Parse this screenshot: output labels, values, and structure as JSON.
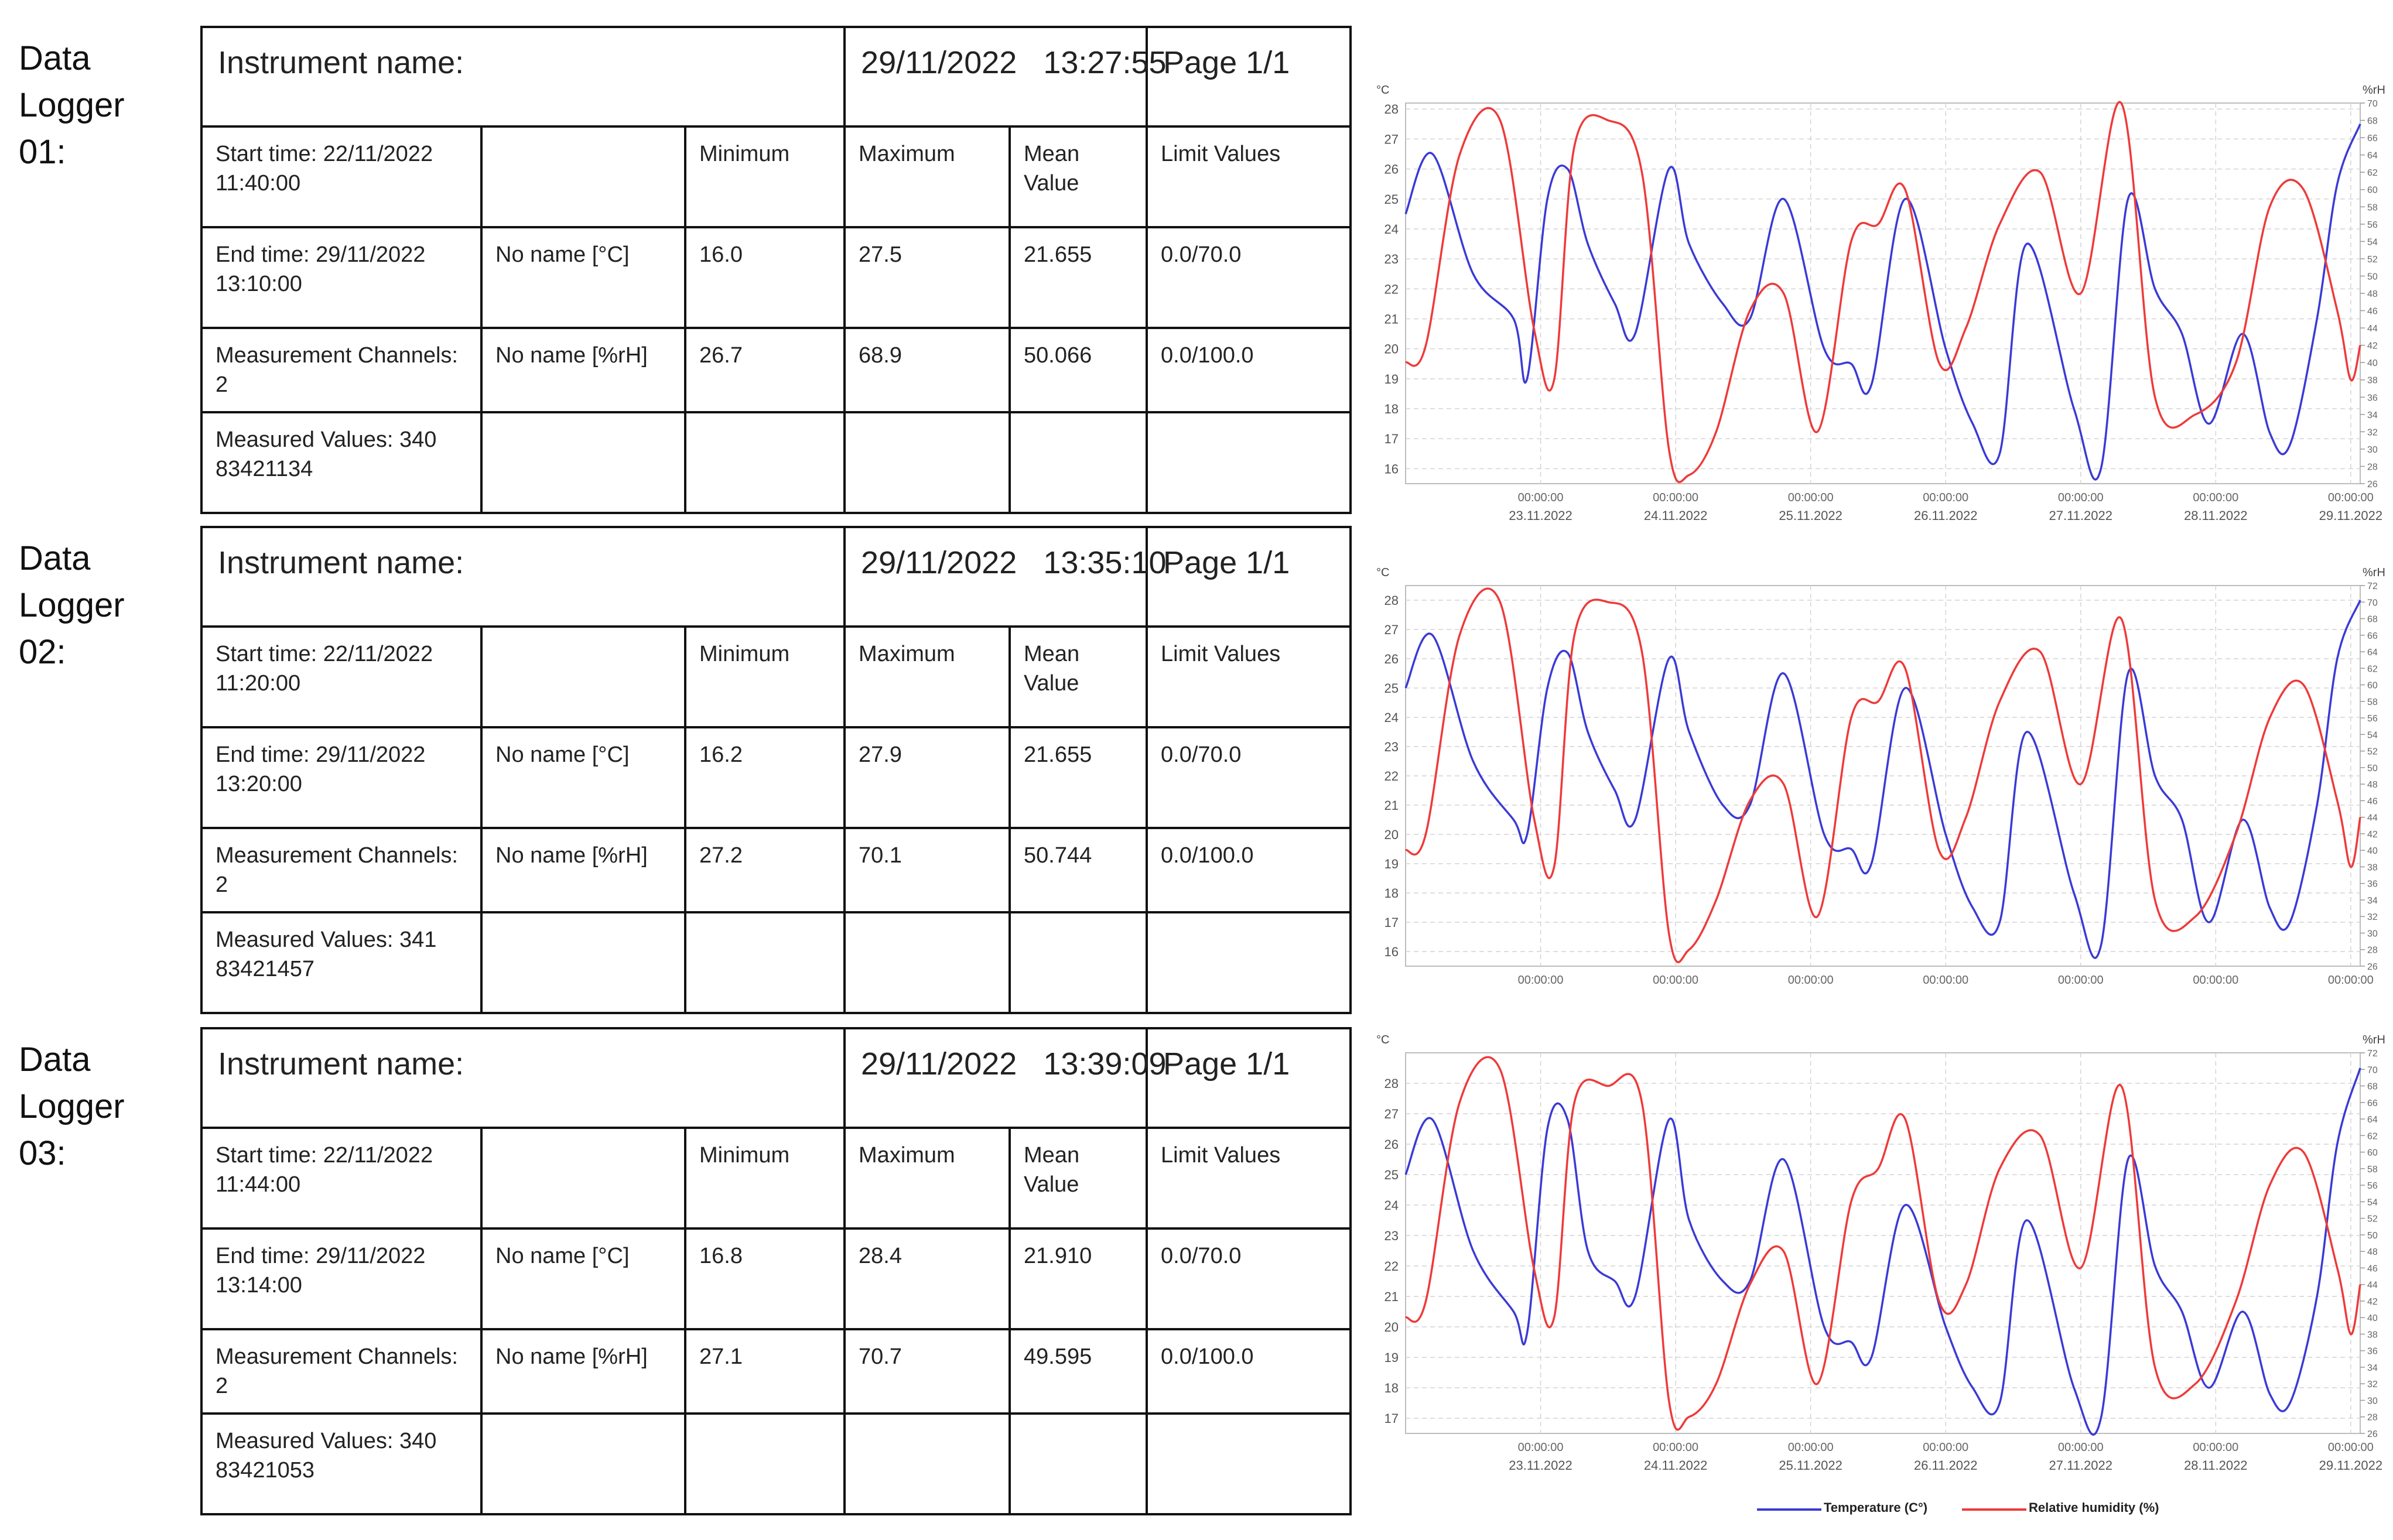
{
  "loggers": [
    {
      "label_line1": "Data",
      "label_line2": "Logger",
      "label_line3": "01:",
      "instrument_label": "Instrument name:",
      "date": "29/11/2022",
      "time": "13:27:55",
      "page": "Page 1/1",
      "start_time_label": "Start time: 22/11/2022",
      "start_time_clock": "11:40:00",
      "end_time_label": "End time: 29/11/2022",
      "end_time_clock": "13:10:00",
      "channels_label": "Measurement Channels:",
      "channels_value": "2",
      "values_label": "Measured Values: 340",
      "serial": "83421134",
      "col_min": "Minimum",
      "col_max": "Maximum",
      "col_mean_1": "Mean",
      "col_mean_2": "Value",
      "col_limit": "Limit Values",
      "ch1_name": "No name [°C]",
      "ch1_min": "16.0",
      "ch1_max": "27.5",
      "ch1_mean": "21.655",
      "ch1_limit": "0.0/70.0",
      "ch2_name": "No name [%rH]",
      "ch2_min": "26.7",
      "ch2_max": "68.9",
      "ch2_mean": "50.066",
      "ch2_limit": "0.0/100.0"
    },
    {
      "label_line1": "Data",
      "label_line2": "Logger",
      "label_line3": "02:",
      "instrument_label": "Instrument name:",
      "date": "29/11/2022",
      "time": "13:35:10",
      "page": "Page 1/1",
      "start_time_label": "Start time: 22/11/2022",
      "start_time_clock": "11:20:00",
      "end_time_label": "End time: 29/11/2022",
      "end_time_clock": "13:20:00",
      "channels_label": "Measurement Channels:",
      "channels_value": "2",
      "values_label": "Measured Values: 341",
      "serial": "83421457",
      "col_min": "Minimum",
      "col_max": "Maximum",
      "col_mean_1": "Mean",
      "col_mean_2": "Value",
      "col_limit": "Limit Values",
      "ch1_name": "No name [°C]",
      "ch1_min": "16.2",
      "ch1_max": "27.9",
      "ch1_mean": "21.655",
      "ch1_limit": "0.0/70.0",
      "ch2_name": "No name [%rH]",
      "ch2_min": "27.2",
      "ch2_max": "70.1",
      "ch2_mean": "50.744",
      "ch2_limit": "0.0/100.0"
    },
    {
      "label_line1": "Data",
      "label_line2": "Logger",
      "label_line3": "03:",
      "instrument_label": "Instrument name:",
      "date": "29/11/2022",
      "time": "13:39:09",
      "page": "Page 1/1",
      "start_time_label": "Start time: 22/11/2022",
      "start_time_clock": "11:44:00",
      "end_time_label": "End time: 29/11/2022",
      "end_time_clock": "13:14:00",
      "channels_label": "Measurement Channels:",
      "channels_value": "2",
      "values_label": "Measured Values: 340",
      "serial": "83421053",
      "col_min": "Minimum",
      "col_max": "Maximum",
      "col_mean_1": "Mean",
      "col_mean_2": "Value",
      "col_limit": "Limit Values",
      "ch1_name": "No name [°C]",
      "ch1_min": "16.8",
      "ch1_max": "28.4",
      "ch1_mean": "21.910",
      "ch1_limit": "0.0/70.0",
      "ch2_name": "No name [%rH]",
      "ch2_min": "27.1",
      "ch2_max": "70.7",
      "ch2_mean": "49.595",
      "ch2_limit": "0.0/100.0"
    }
  ],
  "legend": {
    "temperature": "Temperature (C°)",
    "humidity": "Relative humidity (%)",
    "temperature_color": "#3a3ad6",
    "humidity_color": "#ee3a3a"
  },
  "chart_data": [
    {
      "type": "line",
      "left_unit": "°C",
      "right_unit": "%rH",
      "left_ylim": [
        15.5,
        28.2
      ],
      "left_ticks": [
        16,
        17,
        18,
        19,
        20,
        21,
        22,
        23,
        24,
        25,
        26,
        27,
        28
      ],
      "right_ticks": [
        26,
        28,
        30,
        32,
        34,
        36,
        38,
        40,
        42,
        44,
        46,
        48,
        50,
        52,
        54,
        56,
        58,
        60,
        62,
        64,
        66,
        68,
        70
      ],
      "x_time_label": "00:00:00",
      "x_date_labels": [
        "23.11.2022",
        "24.11.2022",
        "25.11.2022",
        "26.11.2022",
        "27.11.2022",
        "28.11.2022",
        "29.11.2022"
      ],
      "x_range": [
        0,
        7.07
      ],
      "series": [
        {
          "key": "temperature",
          "axis": "left",
          "x": [
            0,
            0.2,
            0.5,
            0.8,
            0.9,
            1.05,
            1.2,
            1.35,
            1.55,
            1.7,
            1.95,
            2.1,
            2.35,
            2.55,
            2.8,
            3.1,
            3.3,
            3.45,
            3.7,
            4.0,
            4.2,
            4.4,
            4.6,
            4.95,
            5.15,
            5.35,
            5.55,
            5.75,
            5.95,
            6.2,
            6.4,
            6.55,
            6.75,
            6.9,
            7.07
          ],
          "y": [
            24.5,
            26.5,
            22.5,
            21.0,
            19.0,
            25.0,
            26.0,
            23.5,
            21.5,
            20.5,
            26.0,
            23.5,
            21.5,
            21.0,
            25.0,
            20.0,
            19.5,
            18.8,
            25.0,
            20.0,
            17.5,
            16.5,
            23.5,
            18.0,
            16.0,
            25.0,
            22.0,
            20.5,
            17.5,
            20.5,
            17.2,
            16.8,
            21.0,
            25.5,
            27.5
          ]
        },
        {
          "key": "humidity",
          "axis": "right",
          "x": [
            0,
            0.15,
            0.4,
            0.7,
            0.95,
            1.1,
            1.25,
            1.5,
            1.75,
            1.95,
            2.1,
            2.3,
            2.55,
            2.8,
            3.05,
            3.3,
            3.5,
            3.7,
            3.95,
            4.15,
            4.4,
            4.7,
            5.0,
            5.3,
            5.55,
            5.85,
            6.15,
            6.4,
            6.65,
            6.9,
            7.0,
            7.07
          ],
          "y": [
            40,
            42,
            64,
            68,
            44,
            38,
            65,
            68,
            62,
            30,
            27,
            32,
            46,
            48,
            32,
            54,
            56,
            60,
            40,
            44,
            56,
            62,
            48,
            70,
            36,
            34,
            40,
            58,
            60,
            46,
            38,
            42
          ]
        }
      ]
    },
    {
      "type": "line",
      "left_unit": "°C",
      "right_unit": "%rH",
      "left_ylim": [
        15.5,
        28.5
      ],
      "left_ticks": [
        16,
        17,
        18,
        19,
        20,
        21,
        22,
        23,
        24,
        25,
        26,
        27,
        28
      ],
      "right_ticks": [
        26,
        28,
        30,
        32,
        34,
        36,
        38,
        40,
        42,
        44,
        46,
        48,
        50,
        52,
        54,
        56,
        58,
        60,
        62,
        64,
        66,
        68,
        70,
        72
      ],
      "x_time_label": "00:00:00",
      "x_date_labels": [],
      "x_range": [
        0,
        7.07
      ],
      "series": [
        {
          "key": "temperature",
          "axis": "left",
          "x": [
            0,
            0.2,
            0.5,
            0.8,
            0.9,
            1.05,
            1.2,
            1.35,
            1.55,
            1.7,
            1.95,
            2.1,
            2.35,
            2.55,
            2.8,
            3.1,
            3.3,
            3.45,
            3.7,
            4.0,
            4.2,
            4.4,
            4.6,
            4.95,
            5.15,
            5.35,
            5.55,
            5.75,
            5.95,
            6.2,
            6.4,
            6.55,
            6.75,
            6.9,
            7.07
          ],
          "y": [
            25.0,
            26.8,
            22.5,
            20.5,
            20.0,
            25.0,
            26.2,
            23.5,
            21.5,
            20.5,
            26.0,
            23.5,
            21.0,
            21.0,
            25.5,
            20.0,
            19.5,
            19.0,
            25.0,
            20.0,
            17.5,
            17.0,
            23.5,
            18.0,
            16.2,
            25.5,
            22.0,
            20.5,
            17.0,
            20.5,
            17.5,
            17.0,
            21.0,
            26.0,
            28.0
          ]
        },
        {
          "key": "humidity",
          "axis": "right",
          "x": [
            0,
            0.15,
            0.4,
            0.7,
            0.95,
            1.1,
            1.25,
            1.5,
            1.75,
            1.95,
            2.1,
            2.3,
            2.55,
            2.8,
            3.05,
            3.3,
            3.5,
            3.7,
            3.95,
            4.15,
            4.4,
            4.7,
            5.0,
            5.3,
            5.55,
            5.85,
            6.15,
            6.4,
            6.65,
            6.9,
            7.0,
            7.07
          ],
          "y": [
            40,
            42,
            66,
            70,
            44,
            38,
            66,
            70,
            64,
            30,
            28,
            34,
            46,
            48,
            32,
            56,
            58,
            62,
            40,
            44,
            58,
            64,
            48,
            68,
            34,
            32,
            42,
            56,
            60,
            46,
            38,
            44
          ]
        }
      ]
    },
    {
      "type": "line",
      "left_unit": "°C",
      "right_unit": "%rH",
      "left_ylim": [
        16.5,
        29.0
      ],
      "left_ticks": [
        17,
        18,
        19,
        20,
        21,
        22,
        23,
        24,
        25,
        26,
        27,
        28
      ],
      "right_ticks": [
        26,
        28,
        30,
        32,
        34,
        36,
        38,
        40,
        42,
        44,
        46,
        48,
        50,
        52,
        54,
        56,
        58,
        60,
        62,
        64,
        66,
        68,
        70,
        72
      ],
      "x_time_label": "00:00:00",
      "x_date_labels": [
        "23.11.2022",
        "24.11.2022",
        "25.11.2022",
        "26.11.2022",
        "27.11.2022",
        "28.11.2022",
        "29.11.2022"
      ],
      "x_range": [
        0,
        7.07
      ],
      "series": [
        {
          "key": "temperature",
          "axis": "left",
          "x": [
            0,
            0.2,
            0.5,
            0.8,
            0.9,
            1.05,
            1.2,
            1.35,
            1.55,
            1.7,
            1.95,
            2.1,
            2.35,
            2.55,
            2.8,
            3.1,
            3.3,
            3.45,
            3.7,
            4.0,
            4.2,
            4.4,
            4.6,
            4.95,
            5.15,
            5.35,
            5.55,
            5.75,
            5.95,
            6.2,
            6.4,
            6.55,
            6.75,
            6.9,
            7.07
          ],
          "y": [
            25.0,
            26.8,
            22.5,
            20.5,
            19.8,
            26.5,
            26.8,
            22.5,
            21.5,
            21.0,
            26.8,
            23.5,
            21.5,
            21.5,
            25.5,
            20.0,
            19.5,
            19.0,
            24.0,
            20.0,
            18.0,
            17.5,
            23.5,
            18.0,
            17.0,
            25.5,
            22.0,
            20.5,
            18.0,
            20.5,
            17.8,
            17.5,
            21.0,
            26.0,
            28.5
          ]
        },
        {
          "key": "humidity",
          "axis": "right",
          "x": [
            0,
            0.15,
            0.4,
            0.7,
            0.95,
            1.1,
            1.25,
            1.5,
            1.75,
            1.95,
            2.1,
            2.3,
            2.55,
            2.8,
            3.05,
            3.3,
            3.5,
            3.7,
            3.95,
            4.15,
            4.4,
            4.7,
            5.0,
            5.3,
            5.55,
            5.85,
            6.15,
            6.4,
            6.65,
            6.9,
            7.0,
            7.07
          ],
          "y": [
            40,
            42,
            66,
            70,
            46,
            40,
            66,
            68,
            66,
            30,
            28,
            32,
            44,
            48,
            32,
            54,
            58,
            64,
            42,
            44,
            58,
            62,
            46,
            68,
            34,
            32,
            42,
            56,
            60,
            46,
            38,
            44
          ]
        }
      ]
    }
  ]
}
